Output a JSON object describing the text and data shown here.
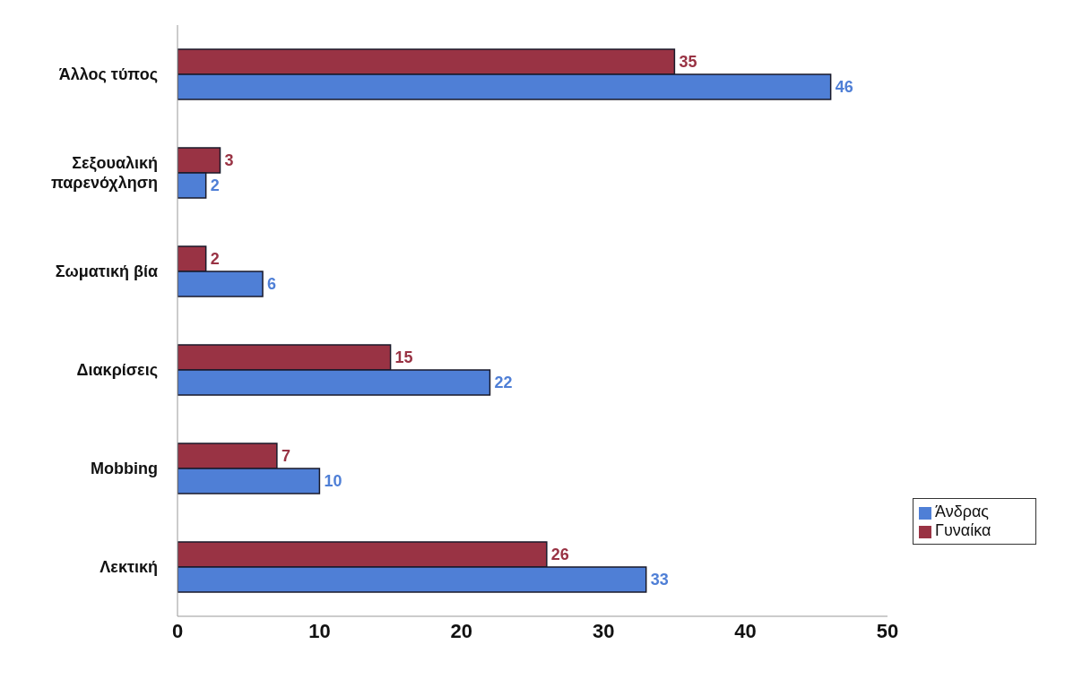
{
  "chart_data": {
    "type": "bar",
    "orientation": "horizontal",
    "categories": [
      "Άλλος τύπος",
      "Σεξουαλική παρενόχληση",
      "Σωματική βία",
      "Διακρίσεις",
      "Mobbing",
      "Λεκτική"
    ],
    "series": [
      {
        "name": "Γυναίκα",
        "color": "#993344",
        "values": [
          35,
          3,
          2,
          15,
          7,
          26
        ]
      },
      {
        "name": "Άνδρας",
        "color": "#4f7fd6",
        "values": [
          46,
          2,
          6,
          22,
          10,
          33
        ]
      }
    ],
    "xlim": [
      0,
      50
    ],
    "xticks": [
      0,
      10,
      20,
      30,
      40,
      50
    ],
    "grid": false,
    "legend": "right",
    "data_labels": true
  }
}
